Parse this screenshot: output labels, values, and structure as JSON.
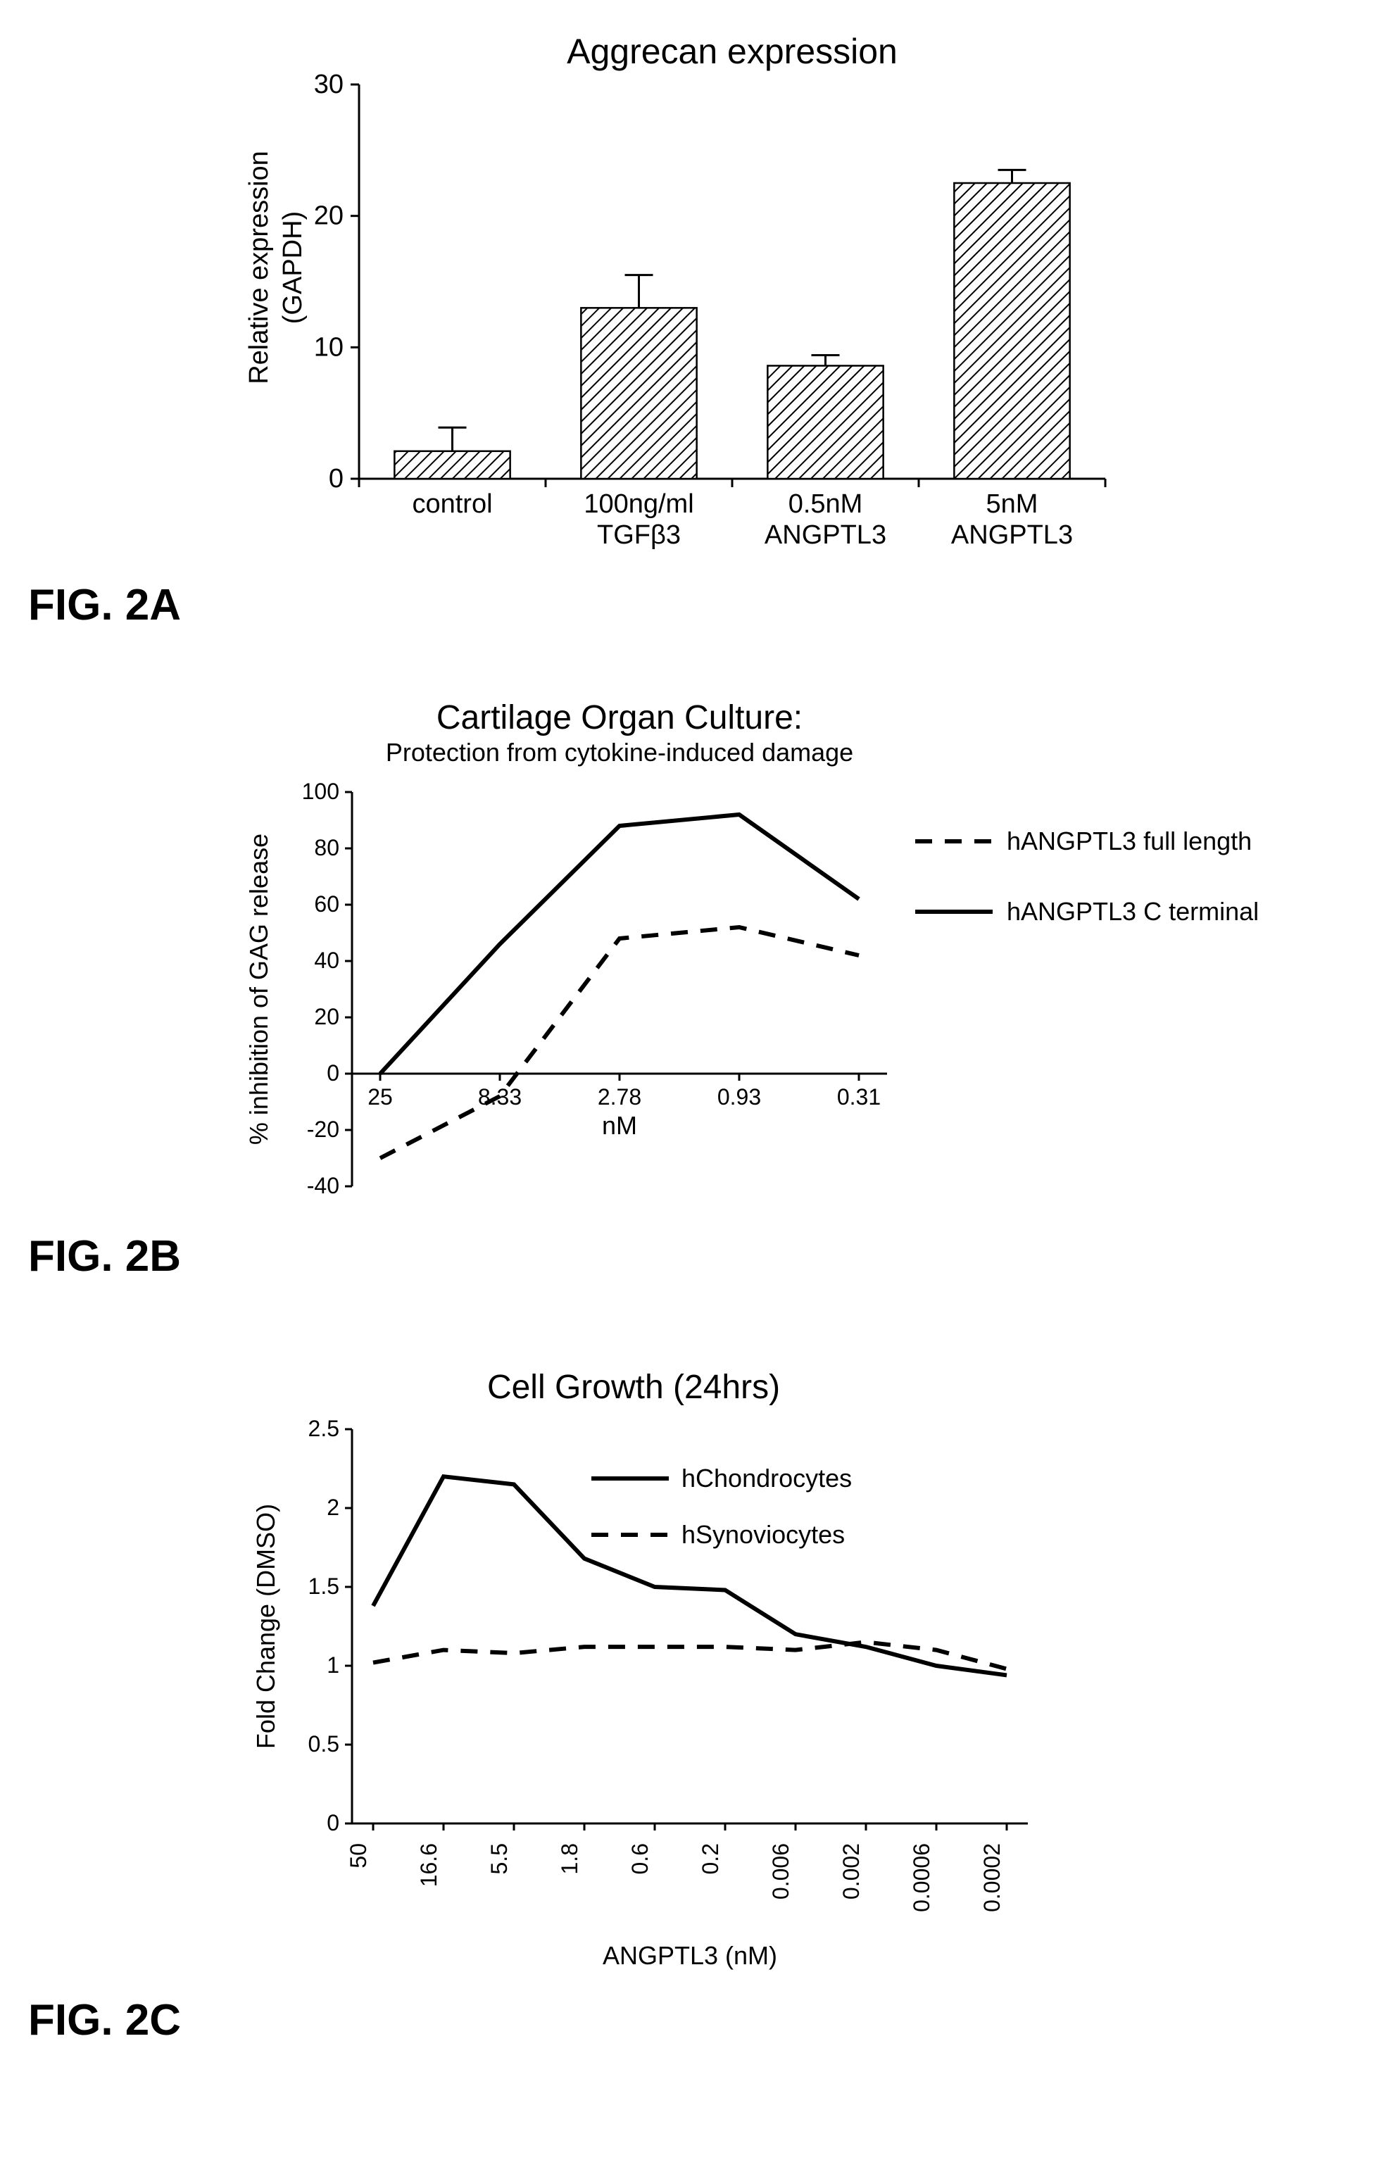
{
  "figA": {
    "label": "FIG. 2A",
    "type": "bar",
    "title": "Aggrecan expression",
    "ylabel_line1": "Relative expression",
    "ylabel_line2": "(GAPDH)",
    "ylim": [
      0,
      30
    ],
    "yticks": [
      0,
      10,
      20,
      30
    ],
    "categories": [
      "control",
      "100ng/ml\nTGFβ3",
      "0.5nM\nANGPTL3",
      "5nM\nANGPTL3"
    ],
    "values": [
      2.1,
      13.0,
      8.6,
      22.5
    ],
    "errors": [
      1.8,
      2.5,
      0.8,
      1.0
    ],
    "bar_color": "#000000",
    "bar_fill": "hatch",
    "background_color": "#ffffff",
    "axis_color": "#000000",
    "title_fontsize": 50,
    "label_fontsize": 38,
    "tick_fontsize": 38
  },
  "figB": {
    "label": "FIG. 2B",
    "type": "line",
    "title_line1": "Cartilage Organ Culture:",
    "title_line2": "Protection from cytokine-induced damage",
    "ylabel": "% inhibition of GAG release",
    "xlabel": "nM",
    "x_ticks": [
      "25",
      "8.33",
      "2.78",
      "0.93",
      "0.31"
    ],
    "ylim": [
      -40,
      100
    ],
    "yticks": [
      -40,
      -20,
      0,
      20,
      40,
      60,
      80,
      100
    ],
    "series": [
      {
        "name": "hANGPTL3 full length",
        "dash": "dashed",
        "color": "#000000",
        "y": [
          -30,
          -8,
          48,
          52,
          42
        ]
      },
      {
        "name": "hANGPTL3 C terminal",
        "dash": "solid",
        "color": "#000000",
        "y": [
          0,
          46,
          88,
          92,
          62
        ]
      }
    ],
    "legend": [
      {
        "text": "hANGPTL3 full length",
        "dash": "dashed"
      },
      {
        "text": "hANGPTL3 C terminal",
        "dash": "solid"
      }
    ],
    "title_fontsize1": 48,
    "title_fontsize2": 36,
    "label_fontsize": 36,
    "tick_fontsize": 32
  },
  "figC": {
    "label": "FIG. 2C",
    "type": "line",
    "title": "Cell Growth (24hrs)",
    "ylabel": "Fold Change (DMSO)",
    "xlabel": "ANGPTL3 (nM)",
    "x_ticks": [
      "50",
      "16.6",
      "5.5",
      "1.8",
      "0.6",
      "0.2",
      "0.006",
      "0.002",
      "0.0006",
      "0.0002"
    ],
    "ylim": [
      0,
      2.5
    ],
    "yticks": [
      0,
      0.5,
      1,
      1.5,
      2,
      2.5
    ],
    "series": [
      {
        "name": "hChondrocytes",
        "dash": "solid",
        "color": "#000000",
        "y": [
          1.38,
          2.2,
          2.15,
          1.68,
          1.5,
          1.48,
          1.2,
          1.12,
          1.0,
          0.94
        ]
      },
      {
        "name": "hSynoviocytes",
        "dash": "dashed",
        "color": "#000000",
        "y": [
          1.02,
          1.1,
          1.08,
          1.12,
          1.12,
          1.12,
          1.1,
          1.15,
          1.1,
          0.98
        ]
      }
    ],
    "legend": [
      {
        "text": "hChondrocytes",
        "dash": "solid"
      },
      {
        "text": "hSynoviocytes",
        "dash": "dashed"
      }
    ],
    "title_fontsize": 48,
    "label_fontsize": 36,
    "tick_fontsize": 32
  }
}
